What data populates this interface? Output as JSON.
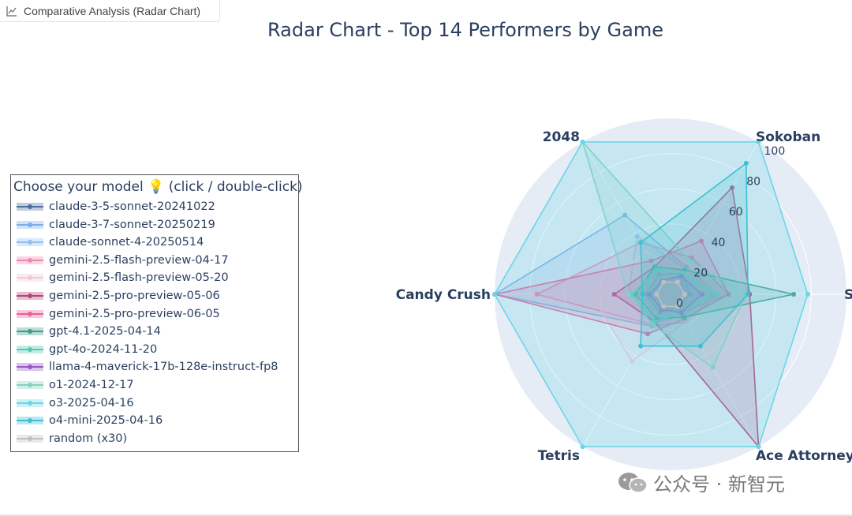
{
  "tab": {
    "label": "Comparative Analysis (Radar Chart)",
    "icon": "chart-line-icon"
  },
  "legend": {
    "title": "Choose your model 💡 (click / double-click)"
  },
  "watermark": {
    "text": "公众号 · 新智元",
    "icon": "wechat-icon"
  },
  "chart_data": {
    "type": "radar",
    "title": "Radar Chart - Top 14 Performers by Game",
    "axes": [
      "Sokoban",
      "2048",
      "Candy Crush",
      "Tetris",
      "Ace Attorney",
      "S"
    ],
    "radial_range": [
      0,
      100
    ],
    "radial_ticks": [
      "0",
      "20",
      "40",
      "60",
      "80",
      "100"
    ],
    "grid": true,
    "legend_position": "left",
    "series": [
      {
        "name": "claude-3-5-sonnet-20241022",
        "color": "#4c6e9e",
        "fill_opacity": 0.15,
        "values": [
          14,
          13,
          14,
          12,
          9,
          11
        ]
      },
      {
        "name": "claude-3-7-sonnet-20250219",
        "color": "#7cacea",
        "fill_opacity": 0.2,
        "values": [
          18,
          52,
          100,
          21,
          18,
          27
        ]
      },
      {
        "name": "claude-sonnet-4-20250514",
        "color": "#8ec0f0",
        "fill_opacity": 0.2,
        "values": [
          17,
          38,
          24,
          19,
          14,
          24
        ]
      },
      {
        "name": "gemini-2.5-flash-preview-04-17",
        "color": "#ea8ab2",
        "fill_opacity": 0.2,
        "values": [
          24,
          34,
          76,
          20,
          12,
          33
        ]
      },
      {
        "name": "gemini-2.5-flash-preview-05-20",
        "color": "#f2c6dc",
        "fill_opacity": 0.2,
        "values": [
          16,
          28,
          45,
          44,
          18,
          28
        ]
      },
      {
        "name": "gemini-2.5-pro-preview-05-06",
        "color": "#b8427a",
        "fill_opacity": 0.2,
        "values": [
          70,
          18,
          32,
          18,
          100,
          45
        ]
      },
      {
        "name": "gemini-2.5-pro-preview-06-05",
        "color": "#e8609a",
        "fill_opacity": 0.2,
        "values": [
          35,
          22,
          100,
          26,
          16,
          33
        ]
      },
      {
        "name": "gpt-4.1-2025-04-14",
        "color": "#3e9c8e",
        "fill_opacity": 0.2,
        "values": [
          16,
          18,
          20,
          16,
          15,
          70
        ]
      },
      {
        "name": "gpt-4o-2024-11-20",
        "color": "#55c8b8",
        "fill_opacity": 0.2,
        "values": [
          14,
          16,
          22,
          18,
          12,
          26
        ]
      },
      {
        "name": "llama-4-maverick-17b-128e-instruct-fp8",
        "color": "#9a58c8",
        "fill_opacity": 0.2,
        "values": [
          12,
          9,
          12,
          10,
          12,
          18
        ]
      },
      {
        "name": "o1-2024-12-17",
        "color": "#86d0c0",
        "fill_opacity": 0.2,
        "values": [
          22,
          100,
          24,
          20,
          48,
          43
        ]
      },
      {
        "name": "o3-2025-04-16",
        "color": "#6ad6e8",
        "fill_opacity": 0.25,
        "values": [
          100,
          100,
          100,
          100,
          100,
          78
        ]
      },
      {
        "name": "o4-mini-2025-04-16",
        "color": "#3ec0d0",
        "fill_opacity": 0.2,
        "values": [
          86,
          34,
          16,
          34,
          34,
          44
        ]
      },
      {
        "name": "random (x30)",
        "color": "#c0c0c0",
        "fill_opacity": 0.2,
        "values": [
          8,
          8,
          8,
          8,
          8,
          8
        ]
      }
    ]
  }
}
